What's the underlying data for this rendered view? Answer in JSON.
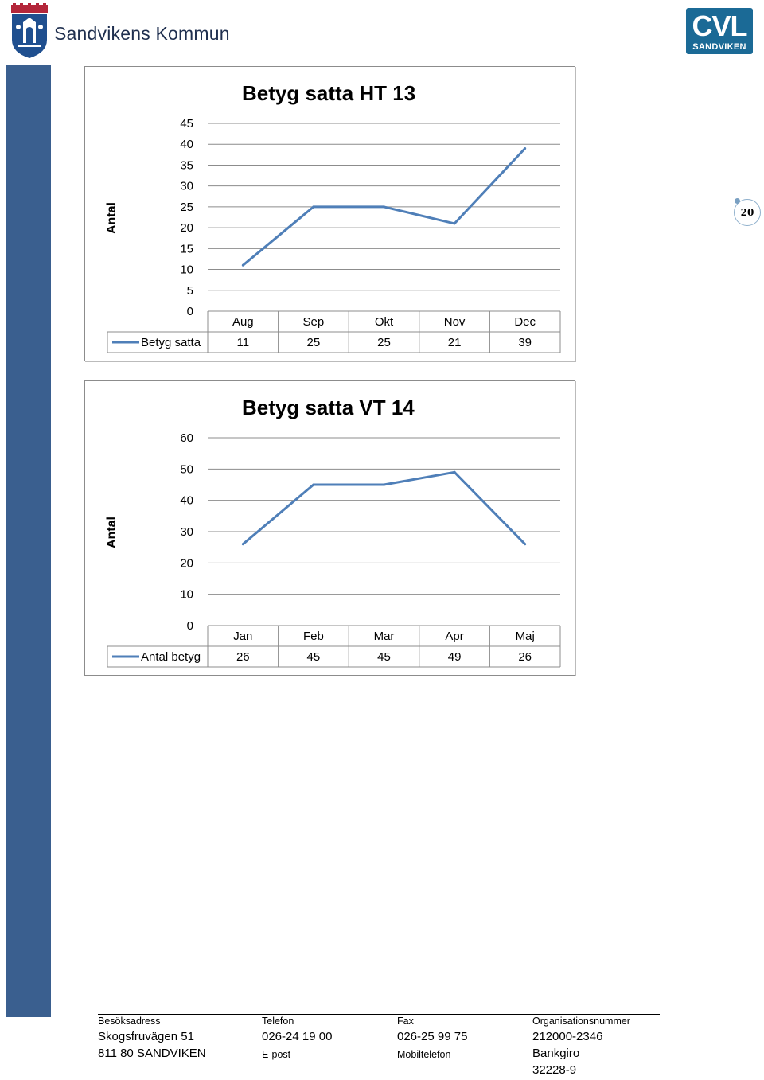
{
  "header": {
    "municipality": "Sandvikens Kommun",
    "logo_icon": "crest-icon",
    "cvl_logo": {
      "main": "CVL",
      "sub": "SANDVIKEN"
    }
  },
  "page_number": "20",
  "chart_data": [
    {
      "type": "line",
      "title": "Betyg satta HT 13",
      "ylabel": "Antal",
      "xlabel": "",
      "categories": [
        "Aug",
        "Sep",
        "Okt",
        "Nov",
        "Dec"
      ],
      "series": [
        {
          "name": "Betyg satta",
          "values": [
            11,
            25,
            25,
            21,
            39
          ]
        }
      ],
      "ylim": [
        0,
        45
      ],
      "yticks": [
        "0",
        "5",
        "10",
        "15",
        "20",
        "25",
        "30",
        "35",
        "40",
        "45"
      ],
      "grid": true,
      "legend": "data-table",
      "colors": {
        "line": "#4f7fb8",
        "grid": "#8c8c8c"
      }
    },
    {
      "type": "line",
      "title": "Betyg satta VT 14",
      "ylabel": "Antal",
      "xlabel": "",
      "categories": [
        "Jan",
        "Feb",
        "Mar",
        "Apr",
        "Maj"
      ],
      "series": [
        {
          "name": "Antal betyg",
          "values": [
            26,
            45,
            45,
            49,
            26
          ]
        }
      ],
      "ylim": [
        0,
        60
      ],
      "yticks": [
        "0",
        "10",
        "20",
        "30",
        "40",
        "50",
        "60"
      ],
      "grid": true,
      "legend": "data-table",
      "colors": {
        "line": "#4f7fb8",
        "grid": "#8c8c8c"
      }
    }
  ],
  "footer": {
    "columns": [
      {
        "label": "Besöksadress",
        "lines": [
          "Skogsfruvägen 51",
          "811 80 SANDVIKEN"
        ]
      },
      {
        "label": "Telefon",
        "lines": [
          "026-24 19 00"
        ],
        "label2": "E-post"
      },
      {
        "label": "Fax",
        "lines": [
          "026-25 99 75"
        ],
        "label2": "Mobiltelefon"
      },
      {
        "label": "Organisationsnummer",
        "lines": [
          "212000-2346",
          "Bankgiro",
          "32228-9"
        ]
      }
    ]
  }
}
